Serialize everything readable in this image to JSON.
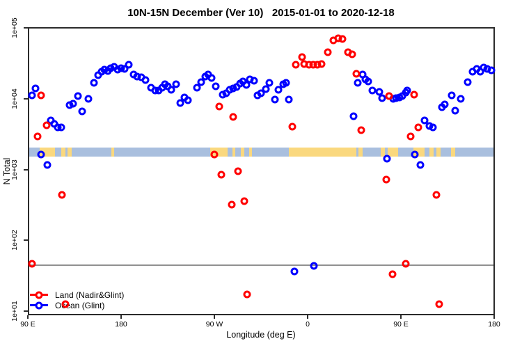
{
  "chart_data": {
    "type": "scatter",
    "title": "10N-15N December (Ver 10)   2015-01-01 to 2020-12-18",
    "xlabel": "Longitude (deg E)",
    "ylabel": "N Total",
    "x_axis": {
      "unit": "degrees east, wrapping across dateline",
      "range_deg": [
        90,
        540
      ],
      "ticks": [
        {
          "pos": 90,
          "label": "90 E"
        },
        {
          "pos": 180,
          "label": "180"
        },
        {
          "pos": 270,
          "label": "90 W"
        },
        {
          "pos": 360,
          "label": "0"
        },
        {
          "pos": 450,
          "label": "90 E"
        },
        {
          "pos": 540,
          "label": "180"
        }
      ]
    },
    "y_axis": {
      "scale": "log10",
      "range": [
        10,
        100000
      ],
      "ticks": [
        {
          "value": 100000,
          "label": "1e+05"
        },
        {
          "value": 10000,
          "label": "1e+04"
        },
        {
          "value": 1000,
          "label": "1e+03"
        },
        {
          "value": 100,
          "label": "1e+02"
        },
        {
          "value": 10,
          "label": "1e+01"
        }
      ]
    },
    "grid": false,
    "reference_line": {
      "value": 47,
      "color": "#909090"
    },
    "land_ocean_strip": {
      "meaning": "land/ocean map strip along the 10N-15N latitude band",
      "ocean_color": "#A9BFDE",
      "land_color": "#FAD87E",
      "value_center": 1850,
      "land_segments_deg": [
        [
          100,
          115
        ],
        [
          121,
          125
        ],
        [
          127,
          131
        ],
        [
          169,
          172
        ],
        [
          264.5,
          281.5
        ],
        [
          286,
          289
        ],
        [
          294,
          297.5
        ],
        [
          302,
          305
        ],
        [
          340.5,
          406
        ],
        [
          408,
          412
        ],
        [
          429,
          433
        ],
        [
          436,
          446
        ],
        [
          461,
          471.5
        ],
        [
          476,
          480
        ],
        [
          483,
          487
        ],
        [
          497,
          501
        ]
      ]
    },
    "legend": {
      "position": "bottom-left",
      "entries": [
        {
          "label": "Land (Nadir&Glint)",
          "color": "#FF0000"
        },
        {
          "label": "Ocean (Glint)",
          "color": "#0000FF"
        }
      ]
    },
    "series": [
      {
        "name": "Land (Nadir&Glint)",
        "color": "#FF0000",
        "marker": "open-circle",
        "points": [
          [
            101.4,
            11700
          ],
          [
            106.8,
            4400
          ],
          [
            98.1,
            3100
          ],
          [
            92.7,
            49
          ],
          [
            121.6,
            460
          ],
          [
            124.9,
            13
          ],
          [
            268.6,
            1700
          ],
          [
            273.3,
            8100
          ],
          [
            275.4,
            880
          ],
          [
            285.4,
            330
          ],
          [
            286.8,
            5800
          ],
          [
            291.5,
            990
          ],
          [
            297.5,
            370
          ],
          [
            300.2,
            18
          ],
          [
            343.8,
            4200
          ],
          [
            347.2,
            31500
          ],
          [
            353.3,
            40500
          ],
          [
            355.3,
            32300
          ],
          [
            360,
            31500
          ],
          [
            364,
            31500
          ],
          [
            368,
            31500
          ],
          [
            372.1,
            32300
          ],
          [
            378.1,
            47000
          ],
          [
            383.5,
            70000
          ],
          [
            388.2,
            74000
          ],
          [
            392.2,
            73000
          ],
          [
            397.6,
            47000
          ],
          [
            401.6,
            44000
          ],
          [
            405.6,
            23500
          ],
          [
            410.3,
            3800
          ],
          [
            434.5,
            750
          ],
          [
            437.2,
            11400
          ],
          [
            440.5,
            35
          ],
          [
            453.3,
            49
          ],
          [
            458,
            3100
          ],
          [
            461.4,
            11900
          ],
          [
            465.4,
            4100
          ],
          [
            482.9,
            460
          ],
          [
            485.6,
            13
          ]
        ]
      },
      {
        "name": "Ocean (Glint)",
        "color": "#0000FF",
        "marker": "open-circle",
        "points": [
          [
            92.7,
            11700
          ],
          [
            96,
            14600
          ],
          [
            101.4,
            1700
          ],
          [
            107.5,
            1200
          ],
          [
            110.8,
            5200
          ],
          [
            114.2,
            4600
          ],
          [
            117.5,
            4100
          ],
          [
            120.9,
            4100
          ],
          [
            129,
            8500
          ],
          [
            132.3,
            8900
          ],
          [
            137,
            11400
          ],
          [
            141,
            6900
          ],
          [
            147.1,
            10400
          ],
          [
            152.5,
            17500
          ],
          [
            156.5,
            22400
          ],
          [
            159.8,
            25100
          ],
          [
            162.5,
            26900
          ],
          [
            165.9,
            25700
          ],
          [
            168.6,
            28200
          ],
          [
            171.9,
            29500
          ],
          [
            175.3,
            26900
          ],
          [
            178.7,
            28200
          ],
          [
            182,
            27500
          ],
          [
            186,
            31500
          ],
          [
            190.7,
            23000
          ],
          [
            194.1,
            21500
          ],
          [
            198.1,
            21000
          ],
          [
            202.2,
            19200
          ],
          [
            207.5,
            15100
          ],
          [
            211.6,
            13700
          ],
          [
            214.9,
            13700
          ],
          [
            218.3,
            15100
          ],
          [
            221,
            16700
          ],
          [
            223.7,
            15700
          ],
          [
            227,
            14000
          ],
          [
            231.7,
            16700
          ],
          [
            235.7,
            9100
          ],
          [
            239.8,
            10900
          ],
          [
            243.1,
            10000
          ],
          [
            251.9,
            15100
          ],
          [
            255.9,
            17900
          ],
          [
            260,
            21500
          ],
          [
            262.6,
            23000
          ],
          [
            266,
            20500
          ],
          [
            270,
            15600
          ],
          [
            276.7,
            11900
          ],
          [
            280.1,
            12500
          ],
          [
            283.4,
            14000
          ],
          [
            286.8,
            14600
          ],
          [
            290.1,
            15300
          ],
          [
            293.5,
            17100
          ],
          [
            296.2,
            18300
          ],
          [
            299.5,
            16400
          ],
          [
            302.9,
            19600
          ],
          [
            306.9,
            18800
          ],
          [
            310.3,
            11700
          ],
          [
            313.6,
            12500
          ],
          [
            318.3,
            14300
          ],
          [
            321.7,
            17500
          ],
          [
            327.1,
            10200
          ],
          [
            330.4,
            14000
          ],
          [
            335.1,
            16700
          ],
          [
            337.8,
            17500
          ],
          [
            340.5,
            10200
          ],
          [
            345.9,
            38
          ],
          [
            364.7,
            46
          ],
          [
            403,
            5900
          ],
          [
            407,
            17500
          ],
          [
            411.7,
            23000
          ],
          [
            414.4,
            19600
          ],
          [
            417.1,
            18300
          ],
          [
            421.1,
            13700
          ],
          [
            427.8,
            13000
          ],
          [
            430.5,
            10600
          ],
          [
            435.2,
            1500
          ],
          [
            441.2,
            10400
          ],
          [
            443.9,
            10600
          ],
          [
            447.2,
            10900
          ],
          [
            449.9,
            11400
          ],
          [
            453.3,
            12800
          ],
          [
            454.6,
            13700
          ],
          [
            462.1,
            1700
          ],
          [
            467.4,
            1200
          ],
          [
            471.5,
            5200
          ],
          [
            476.1,
            4300
          ],
          [
            479.5,
            4100
          ],
          [
            488.2,
            7900
          ],
          [
            490.9,
            8700
          ],
          [
            497.6,
            11700
          ],
          [
            501,
            7100
          ],
          [
            506.3,
            10400
          ],
          [
            513.1,
            17900
          ],
          [
            517.8,
            25100
          ],
          [
            521.8,
            27500
          ],
          [
            525.2,
            25100
          ],
          [
            528.5,
            28800
          ],
          [
            531.9,
            27500
          ],
          [
            535.9,
            26300
          ]
        ]
      }
    ]
  }
}
